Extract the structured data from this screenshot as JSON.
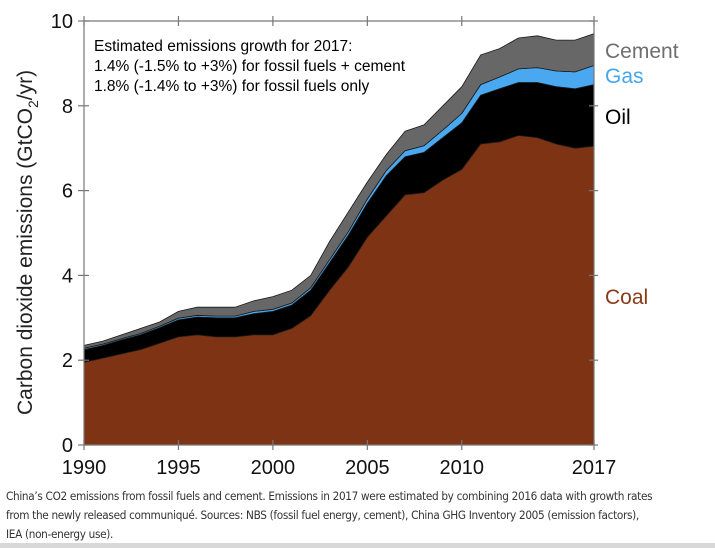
{
  "chart_data": {
    "type": "area",
    "stacked": true,
    "title": "",
    "xlabel": "",
    "ylabel": "Carbon dioxide emissions (GtCO2/yr)",
    "ylabel_parts": {
      "main": "Carbon dioxide emissions (GtCO",
      "sub": "2",
      "tail": "/yr)"
    },
    "xlim": [
      1990,
      2017
    ],
    "ylim": [
      0,
      10
    ],
    "grid": false,
    "x_ticks": [
      1990,
      1995,
      2000,
      2005,
      2010,
      2017
    ],
    "x_tick_labels": [
      "1990",
      "1995",
      "2000",
      "2005",
      "2010",
      "2017"
    ],
    "y_ticks": [
      0,
      2,
      4,
      6,
      8,
      10
    ],
    "y_tick_labels": [
      "0",
      "2",
      "4",
      "6",
      "8",
      "10"
    ],
    "x": [
      1990,
      1991,
      1992,
      1993,
      1994,
      1995,
      1996,
      1997,
      1998,
      1999,
      2000,
      2001,
      2002,
      2003,
      2004,
      2005,
      2006,
      2007,
      2008,
      2009,
      2010,
      2011,
      2012,
      2013,
      2014,
      2015,
      2016,
      2017
    ],
    "series": [
      {
        "name": "Coal",
        "color": "#7f3315",
        "values": [
          1.95,
          2.05,
          2.15,
          2.25,
          2.4,
          2.55,
          2.6,
          2.55,
          2.55,
          2.6,
          2.6,
          2.75,
          3.05,
          3.65,
          4.2,
          4.9,
          5.4,
          5.9,
          5.95,
          6.25,
          6.5,
          7.1,
          7.15,
          7.3,
          7.25,
          7.1,
          7.0,
          7.05
        ]
      },
      {
        "name": "Oil",
        "color": "#000000",
        "values": [
          0.3,
          0.3,
          0.33,
          0.35,
          0.37,
          0.4,
          0.42,
          0.45,
          0.45,
          0.5,
          0.55,
          0.55,
          0.6,
          0.65,
          0.75,
          0.8,
          0.95,
          0.9,
          0.95,
          1.0,
          1.1,
          1.15,
          1.25,
          1.25,
          1.3,
          1.35,
          1.4,
          1.45
        ]
      },
      {
        "name": "Gas",
        "color": "#4aa8f0",
        "values": [
          0.03,
          0.03,
          0.03,
          0.03,
          0.03,
          0.04,
          0.04,
          0.04,
          0.04,
          0.05,
          0.05,
          0.05,
          0.06,
          0.07,
          0.08,
          0.1,
          0.12,
          0.14,
          0.16,
          0.18,
          0.22,
          0.25,
          0.28,
          0.32,
          0.35,
          0.37,
          0.4,
          0.45
        ]
      },
      {
        "name": "Cement",
        "color": "#676767",
        "values": [
          0.07,
          0.07,
          0.09,
          0.12,
          0.1,
          0.16,
          0.19,
          0.21,
          0.21,
          0.25,
          0.3,
          0.3,
          0.29,
          0.43,
          0.47,
          0.4,
          0.38,
          0.46,
          0.49,
          0.57,
          0.63,
          0.7,
          0.67,
          0.73,
          0.75,
          0.73,
          0.75,
          0.75
        ]
      }
    ],
    "legend": {
      "placement": "right",
      "entries": [
        {
          "label": "Cement",
          "color": "#6e6e6e"
        },
        {
          "label": "Gas",
          "color": "#45a6ee"
        },
        {
          "label": "Oil",
          "color": "#000000"
        },
        {
          "label": "Coal",
          "color": "#8a3a1a"
        }
      ]
    },
    "annotations": [
      "Estimated emissions growth for 2017:",
      "1.4% (-1.5% to +3%) for fossil fuels + cement",
      "1.8% (-1.4% to +3%) for fossil fuels only"
    ]
  },
  "caption": "China’s CO2 emissions from fossil fuels and cement. Emissions in 2017 were estimated by combining 2016 data with growth rates from the newly released communiqué. Sources: NBS (fossil fuel energy, cement), China GHG Inventory 2005 (emission factors), IEA (non-energy use)."
}
